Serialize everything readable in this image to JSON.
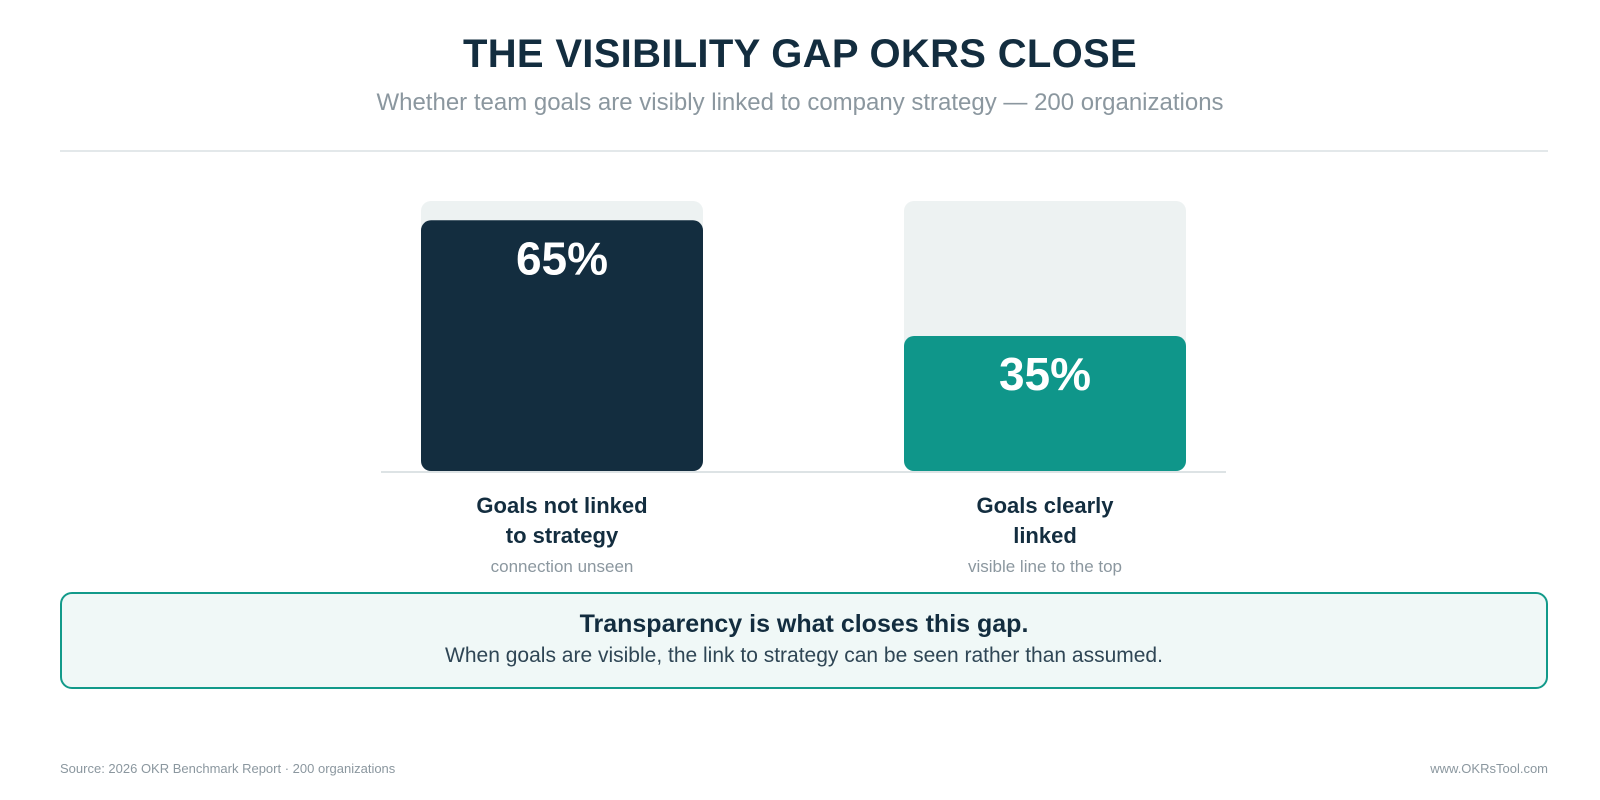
{
  "header": {
    "title": "THE VISIBILITY GAP OKRS CLOSE",
    "subtitle": "Whether team goals are visibly linked to company strategy — 200 organizations"
  },
  "chart_data": {
    "type": "bar",
    "categories": [
      "Goals not linked\nto strategy",
      "Goals clearly\nlinked"
    ],
    "category_subtitles": [
      "connection unseen",
      "visible line to the top"
    ],
    "values": [
      65,
      35
    ],
    "value_labels": [
      "65%",
      "35%"
    ],
    "ylim": [
      0,
      70
    ],
    "colors": [
      "#132d3f",
      "#0f968a"
    ],
    "track_color": "#edf2f2",
    "grid": false
  },
  "callout": {
    "headline": "Transparency is what closes this gap.",
    "body": "When goals are visible, the link to strategy can be seen rather than assumed."
  },
  "footer": {
    "source": "Source: 2026 OKR Benchmark Report · 200 organizations",
    "website": "www.OKRsTool.com"
  }
}
